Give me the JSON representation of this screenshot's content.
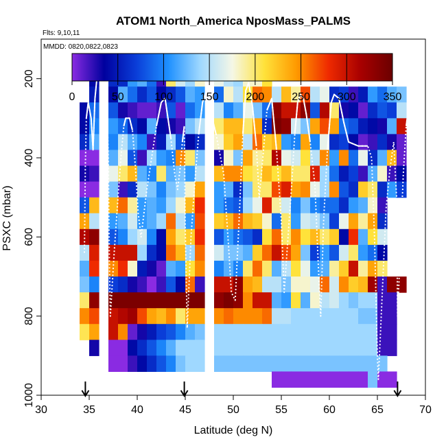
{
  "chart_data": {
    "type": "heatmap",
    "title": "ATOM1 North_America NposMass_PALMS",
    "flights_note": "Flts: 9,10,11",
    "dates_note": "MMDD: 0820,0822,0823",
    "xlabel": "Latitude (deg N)",
    "ylabel": "PSXC (mbar)",
    "xlim": [
      30,
      70
    ],
    "ylim": [
      1000,
      100
    ],
    "x_ticks": [
      30,
      35,
      40,
      45,
      50,
      55,
      60,
      65,
      70
    ],
    "y_ticks": [
      200,
      400,
      600,
      800,
      1000
    ],
    "colorbar": {
      "range": [
        0,
        350
      ],
      "ticks": [
        0,
        50,
        100,
        150,
        200,
        250,
        300,
        350
      ],
      "stops": [
        "#8a2be2",
        "#00009e",
        "#0a3dd8",
        "#1e90ff",
        "#9fd8ff",
        "#f5f7e6",
        "#ffe23a",
        "#ff9a00",
        "#ef2a00",
        "#a80000",
        "#6b0000"
      ]
    },
    "cell_size": {
      "lat_deg": 1,
      "pressure_mbar": 40
    },
    "cells": [
      {
        "lat_start": 34,
        "rows": [
          [
            260,
            40
          ],
          [
            300,
            40
          ],
          [
            340,
            60
          ],
          [
            380,
            0
          ],
          [
            420,
            30
          ],
          [
            460,
            0
          ],
          [
            500,
            80
          ],
          [
            540,
            240
          ],
          [
            580,
            310
          ],
          [
            620,
            150
          ],
          [
            660,
            120
          ],
          [
            700,
            130
          ],
          [
            740,
            200
          ],
          [
            780,
            250
          ],
          [
            820,
            205
          ]
        ]
      },
      {
        "lat_start": 35,
        "rows": [
          [
            180,
            40
          ],
          [
            220,
            50
          ],
          [
            260,
            90
          ],
          [
            300,
            100
          ],
          [
            340,
            120
          ],
          [
            380,
            0
          ],
          [
            420,
            20
          ],
          [
            460,
            0
          ],
          [
            500,
            230
          ],
          [
            540,
            150
          ],
          [
            580,
            330
          ],
          [
            620,
            290
          ],
          [
            660,
            280
          ],
          [
            700,
            100
          ],
          [
            740,
            330
          ],
          [
            780,
            270
          ],
          [
            820,
            240
          ],
          [
            860,
            30
          ]
        ]
      },
      {
        "lat_start": 37,
        "rows": [
          [
            180,
            60,
            60,
            110,
            120,
            90,
            20,
            200,
            160,
            140,
            180
          ],
          [
            220,
            40,
            120,
            90,
            60,
            80,
            40,
            60,
            80,
            120,
            110
          ],
          [
            260,
            80,
            30,
            20,
            10,
            10,
            20,
            80,
            10,
            90,
            110
          ],
          [
            300,
            110,
            90,
            60,
            40,
            120,
            40,
            30,
            20,
            130,
            150
          ],
          [
            340,
            100,
            150,
            120,
            100,
            20,
            50,
            140,
            80,
            40,
            60
          ],
          [
            380,
            120,
            170,
            80,
            20,
            140,
            110,
            100,
            250,
            200,
            130
          ],
          [
            420,
            170,
            200,
            230,
            120,
            100,
            200,
            120,
            130,
            110,
            150
          ],
          [
            460,
            130,
            20,
            60,
            150,
            130,
            100,
            130,
            140,
            180,
            240
          ],
          [
            500,
            230,
            260,
            190,
            110,
            120,
            110,
            140,
            180,
            230,
            280
          ],
          [
            540,
            110,
            120,
            160,
            110,
            120,
            140,
            260,
            150,
            110,
            270
          ],
          [
            580,
            80,
            100,
            140,
            160,
            100,
            40,
            240,
            200,
            220,
            280
          ],
          [
            620,
            300,
            300,
            300,
            140,
            60,
            40,
            260,
            230,
            140,
            260
          ],
          [
            660,
            250,
            280,
            180,
            50,
            30,
            10,
            120,
            110,
            210,
            250
          ],
          [
            700,
            70,
            60,
            30,
            20,
            0,
            20,
            80,
            40,
            260,
            20
          ],
          [
            740,
            340,
            340,
            340,
            340,
            340,
            340,
            340,
            340,
            340,
            340
          ],
          [
            780,
            300,
            310,
            320,
            270,
            240,
            230,
            250,
            200,
            240,
            240
          ],
          [
            820,
            300,
            250,
            10,
            30,
            50,
            70,
            80,
            100,
            120,
            130
          ],
          [
            860,
            0,
            0,
            40,
            60,
            80,
            100,
            120,
            140,
            140,
            140
          ],
          [
            900,
            0,
            0,
            20,
            40,
            60,
            80,
            100,
            130,
            140,
            140
          ]
        ]
      },
      {
        "lat_start": 48,
        "rows": [
          [
            180,
            170,
            150,
            140,
            180,
            180,
            210
          ],
          [
            220,
            90,
            180,
            150,
            210,
            260,
            250
          ],
          [
            260,
            150,
            100,
            120,
            170,
            130,
            90
          ],
          [
            300,
            200,
            230,
            230,
            200,
            240,
            60
          ],
          [
            340,
            180,
            220,
            240,
            150,
            260,
            220
          ],
          [
            380,
            30,
            180,
            130,
            240,
            190,
            200
          ],
          [
            420,
            230,
            250,
            250,
            210,
            200,
            230
          ],
          [
            460,
            110,
            120,
            60,
            130,
            200,
            200
          ],
          [
            500,
            110,
            90,
            80,
            140,
            170,
            290
          ],
          [
            540,
            220,
            230,
            260,
            230,
            220,
            180
          ],
          [
            580,
            80,
            110,
            90,
            80,
            60,
            210
          ],
          [
            620,
            160,
            130,
            130,
            120,
            220,
            260
          ],
          [
            660,
            100,
            120,
            100,
            200,
            260,
            200
          ],
          [
            700,
            300,
            300,
            330,
            240,
            230,
            150
          ],
          [
            740,
            330,
            340,
            330,
            250,
            300,
            300
          ],
          [
            780,
            250,
            260,
            250,
            250,
            250,
            260
          ],
          [
            820,
            140,
            140,
            140,
            140,
            140,
            140
          ],
          [
            860,
            140,
            140,
            140,
            140,
            140,
            140
          ],
          [
            900,
            130,
            130,
            130,
            130,
            130,
            130
          ]
        ]
      },
      {
        "lat_start": 54,
        "rows": [
          [
            220,
            150,
            230,
            190,
            270,
            150,
            170,
            60,
            70,
            20,
            50,
            110,
            90,
            120,
            130
          ],
          [
            260,
            330,
            300,
            300,
            330,
            80,
            310,
            200,
            30,
            40,
            10,
            60,
            80,
            70,
            150
          ],
          [
            300,
            340,
            330,
            160,
            130,
            240,
            270,
            240,
            90,
            80,
            50,
            40,
            30,
            120,
            300
          ],
          [
            340,
            230,
            110,
            100,
            240,
            100,
            170,
            60,
            70,
            40,
            10,
            20,
            60,
            30,
            10
          ],
          [
            380,
            310,
            170,
            160,
            210,
            150,
            250,
            110,
            250,
            90,
            170,
            60,
            120,
            230,
            10
          ],
          [
            420,
            210,
            230,
            200,
            200,
            290,
            140,
            90,
            50,
            70,
            20,
            120,
            180,
            20,
            40
          ],
          [
            460,
            270,
            290,
            240,
            250,
            170,
            140,
            250,
            80,
            60,
            220,
            200,
            60,
            110,
            70
          ],
          [
            500,
            190,
            160,
            100,
            130,
            100,
            90,
            90,
            60,
            110,
            120,
            180,
            20
          ],
          [
            540,
            90,
            200,
            110,
            160,
            150,
            130,
            70,
            170,
            240,
            190,
            240,
            60
          ],
          [
            580,
            260,
            200,
            250,
            210,
            230,
            200,
            220,
            40,
            280,
            120,
            210,
            160
          ],
          [
            620,
            300,
            270,
            240,
            130,
            70,
            110,
            80,
            160,
            200,
            110,
            90,
            40
          ],
          [
            660,
            120,
            150,
            210,
            170,
            110,
            120,
            190,
            220,
            300,
            190,
            240,
            200
          ],
          [
            700,
            150,
            130,
            180,
            180,
            170,
            260,
            160,
            250,
            220,
            230,
            320,
            20,
            330,
            330
          ],
          [
            740,
            120,
            110,
            210,
            120,
            180,
            150,
            160,
            140,
            130,
            140,
            140,
            20,
            20
          ],
          [
            780,
            150,
            150,
            140,
            140,
            140,
            140,
            140,
            140,
            140,
            130,
            130,
            20,
            20
          ],
          [
            820,
            140,
            140,
            140,
            140,
            140,
            140,
            140,
            140,
            140,
            140,
            140,
            20,
            20
          ],
          [
            860,
            140,
            140,
            140,
            140,
            140,
            140,
            140,
            140,
            140,
            140,
            140,
            20,
            20
          ],
          [
            900,
            130,
            130,
            130,
            130,
            130,
            130,
            130,
            130,
            130,
            130,
            130,
            130
          ],
          [
            940,
            0,
            0,
            0,
            0,
            0,
            0,
            0,
            0,
            0,
            0,
            130,
            0,
            0
          ]
        ]
      }
    ],
    "flight_track": [
      [
        34.5,
        640
      ],
      [
        34.6,
        420
      ],
      [
        34.7,
        300
      ],
      [
        34.9,
        260
      ],
      [
        35.2,
        300
      ],
      [
        35.4,
        380
      ],
      [
        35.6,
        250
      ],
      [
        35.8,
        200
      ],
      [
        35.9,
        190
      ],
      [
        36.5,
        190
      ],
      [
        36.8,
        195
      ],
      [
        37.0,
        420
      ],
      [
        37.1,
        660
      ],
      [
        37.2,
        800
      ],
      [
        37.6,
        640
      ],
      [
        38.0,
        500
      ],
      [
        38.3,
        400
      ],
      [
        38.6,
        320
      ],
      [
        38.8,
        300
      ],
      [
        39.2,
        300
      ],
      [
        39.5,
        330
      ],
      [
        39.8,
        420
      ],
      [
        40.1,
        540
      ],
      [
        40.4,
        600
      ],
      [
        41.0,
        480
      ],
      [
        41.5,
        400
      ],
      [
        42.0,
        320
      ],
      [
        42.5,
        260
      ],
      [
        42.9,
        250
      ],
      [
        43.2,
        300
      ],
      [
        43.5,
        350
      ],
      [
        43.9,
        440
      ],
      [
        44.2,
        480
      ],
      [
        44.5,
        420
      ],
      [
        44.7,
        360
      ],
      [
        44.9,
        320
      ],
      [
        45.0,
        580
      ],
      [
        45.1,
        700
      ],
      [
        45.2,
        830
      ],
      [
        45.6,
        600
      ],
      [
        46.0,
        460
      ],
      [
        46.4,
        340
      ],
      [
        46.8,
        260
      ],
      [
        47.2,
        230
      ],
      [
        47.5,
        250
      ],
      [
        47.8,
        300
      ],
      [
        48.2,
        340
      ],
      [
        48.6,
        390
      ],
      [
        49.0,
        440
      ],
      [
        49.5,
        620
      ],
      [
        49.8,
        740
      ],
      [
        50.2,
        760
      ],
      [
        50.6,
        560
      ],
      [
        51.0,
        340
      ],
      [
        51.3,
        230
      ],
      [
        51.6,
        210
      ],
      [
        52.0,
        270
      ],
      [
        52.4,
        370
      ],
      [
        52.7,
        500
      ],
      [
        53.0,
        420
      ],
      [
        53.5,
        280
      ],
      [
        54.0,
        250
      ],
      [
        54.5,
        380
      ],
      [
        55.0,
        560
      ],
      [
        55.3,
        740
      ],
      [
        55.7,
        600
      ],
      [
        56.1,
        460
      ],
      [
        56.4,
        340
      ],
      [
        56.7,
        260
      ],
      [
        57.0,
        240
      ],
      [
        57.3,
        250
      ],
      [
        57.6,
        290
      ],
      [
        58.0,
        360
      ],
      [
        58.5,
        470
      ],
      [
        58.9,
        700
      ],
      [
        59.1,
        800
      ],
      [
        59.4,
        560
      ],
      [
        59.8,
        380
      ],
      [
        60.2,
        260
      ],
      [
        60.5,
        240
      ],
      [
        61.0,
        250
      ],
      [
        61.5,
        310
      ],
      [
        62.0,
        360
      ],
      [
        63.0,
        370
      ],
      [
        64.0,
        370
      ],
      [
        64.4,
        400
      ],
      [
        64.7,
        600
      ],
      [
        65.0,
        900
      ],
      [
        65.1,
        960
      ],
      [
        65.4,
        800
      ],
      [
        65.9,
        530
      ],
      [
        66.3,
        430
      ],
      [
        66.7,
        360
      ],
      [
        67.0,
        500
      ],
      [
        67.1,
        800
      ],
      [
        67.4,
        620
      ],
      [
        67.7,
        440
      ],
      [
        68.0,
        320
      ],
      [
        68.3,
        260
      ],
      [
        68.9,
        240
      ],
      [
        69.3,
        230
      ],
      [
        69.7,
        220
      ],
      [
        70.0,
        210
      ]
    ],
    "arrow_latitudes": [
      34.6,
      44.9,
      67.1
    ]
  }
}
